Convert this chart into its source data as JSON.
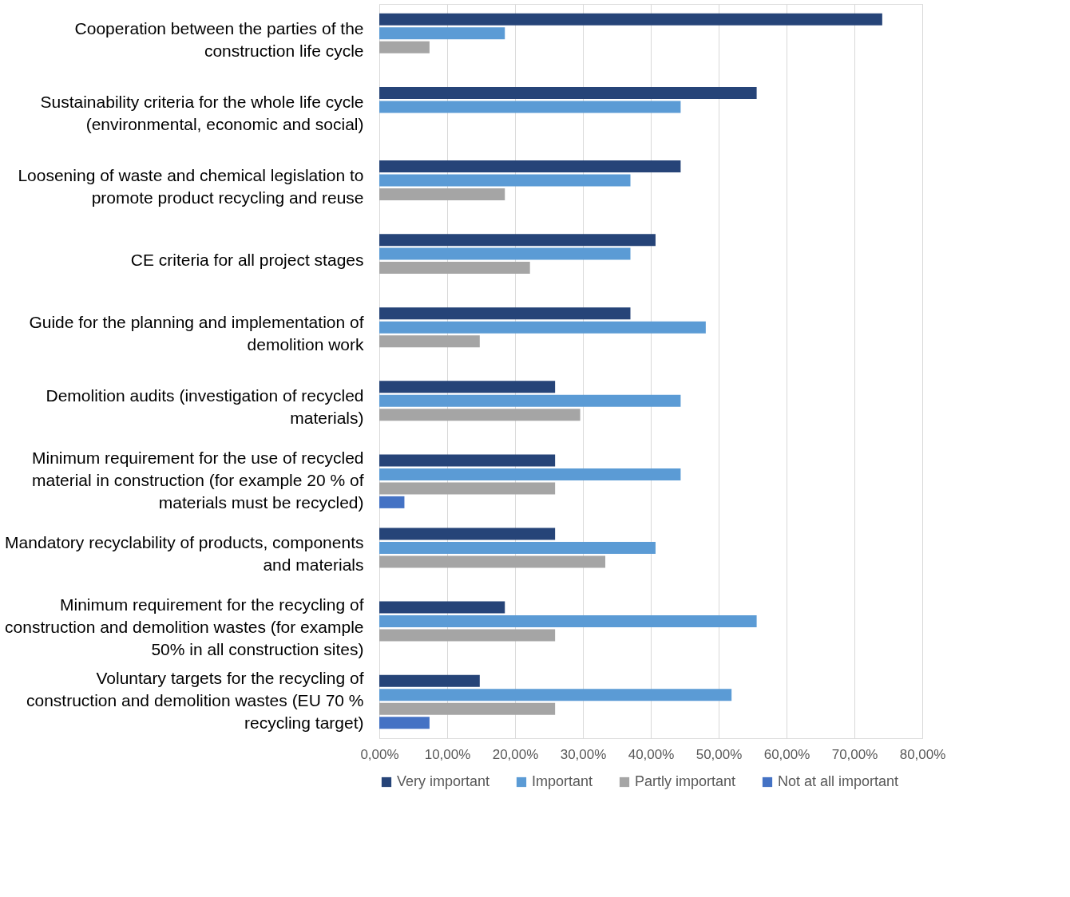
{
  "chart_data": {
    "type": "bar",
    "orientation": "horizontal",
    "categories": [
      "Cooperation between the parties of the construction life cycle",
      "Sustainability criteria for the whole life cycle (environmental, economic and social)",
      "Loosening of waste and chemical legislation to promote product recycling and reuse",
      "CE criteria for all project stages",
      "Guide for the planning and implementation of demolition work",
      "Demolition audits (investigation of recycled materials)",
      "Minimum requirement for the use of recycled material in construction (for example 20 % of materials must be recycled)",
      "Mandatory recyclability of products, components and materials",
      "Minimum requirement for the recycling of construction and demolition wastes (for example 50% in all construction sites)",
      "Voluntary targets for the recycling of construction and demolition wastes (EU 70 % recycling target)"
    ],
    "series": [
      {
        "name": "Very important",
        "color": "#264478",
        "values": [
          74.1,
          55.6,
          44.4,
          40.7,
          37.0,
          25.9,
          25.9,
          25.9,
          18.5,
          14.8
        ]
      },
      {
        "name": "Important",
        "color": "#5b9bd5",
        "values": [
          18.5,
          44.4,
          37.0,
          37.0,
          48.1,
          44.4,
          44.4,
          40.7,
          55.6,
          51.9
        ]
      },
      {
        "name": "Partly important",
        "color": "#a5a5a5",
        "values": [
          7.4,
          null,
          18.5,
          22.2,
          14.8,
          29.6,
          25.9,
          33.3,
          25.9,
          25.9
        ]
      },
      {
        "name": "Not at all important",
        "color": "#4472c4",
        "values": [
          null,
          null,
          null,
          null,
          null,
          null,
          3.7,
          null,
          null,
          7.4
        ]
      }
    ],
    "xlim": [
      0,
      80
    ],
    "xticks": [
      {
        "value": 0,
        "label": "0,00%"
      },
      {
        "value": 10,
        "label": "10,00%"
      },
      {
        "value": 20,
        "label": "20,00%"
      },
      {
        "value": 30,
        "label": "30,00%"
      },
      {
        "value": 40,
        "label": "40,00%"
      },
      {
        "value": 50,
        "label": "50,00%"
      },
      {
        "value": 60,
        "label": "60,00%"
      },
      {
        "value": 70,
        "label": "70,00%"
      },
      {
        "value": 80,
        "label": "80,00%"
      }
    ],
    "grid": "x",
    "legend": "bottom"
  }
}
